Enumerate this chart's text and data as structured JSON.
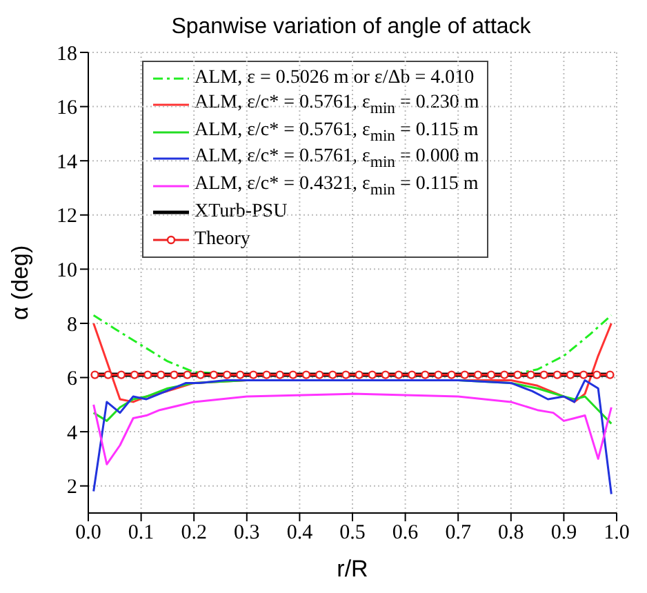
{
  "chart_data": {
    "type": "line",
    "title": "Spanwise variation of angle of attack",
    "xlabel": "r/R",
    "ylabel": "α (deg)",
    "xlim": [
      0,
      1
    ],
    "xticks": [
      {
        "value": 0,
        "label": "0.0"
      },
      0.1,
      0.2,
      0.3,
      0.4,
      0.5,
      0.6,
      0.7,
      0.8,
      0.9,
      {
        "value": 1,
        "label": "1.0"
      }
    ],
    "ylim": [
      1,
      18
    ],
    "yticks": [
      2,
      4,
      6,
      8,
      10,
      12,
      14,
      16,
      18
    ],
    "grid": true,
    "legend": "top",
    "series": [
      {
        "name": "ALM, ε = 0.5026 m or ε/Δb = 4.010",
        "color": "#22ee22",
        "line_style": "dashed",
        "x": [
          0.01,
          0.05,
          0.1,
          0.15,
          0.2,
          0.3,
          0.5,
          0.7,
          0.8,
          0.85,
          0.9,
          0.95,
          0.99
        ],
        "values": [
          8.3,
          7.8,
          7.2,
          6.6,
          6.2,
          6.1,
          6.1,
          6.1,
          6.1,
          6.3,
          6.8,
          7.6,
          8.3
        ]
      },
      {
        "name": "ALM, ε/c* = 0.5761, ε$_{min}$ = 0.230 m",
        "color": "#ff3333",
        "x": [
          0.01,
          0.035,
          0.06,
          0.085,
          0.11,
          0.15,
          0.2,
          0.3,
          0.5,
          0.7,
          0.8,
          0.85,
          0.9,
          0.92,
          0.94,
          0.965,
          0.99
        ],
        "values": [
          8.0,
          6.6,
          5.2,
          5.1,
          5.3,
          5.5,
          5.8,
          5.9,
          5.9,
          5.9,
          5.9,
          5.7,
          5.3,
          5.1,
          5.4,
          6.8,
          8.0
        ]
      },
      {
        "name": "ALM, ε/c* = 0.5761, ε$_{min}$ = 0.115 m",
        "color": "#22dd22",
        "x": [
          0.01,
          0.035,
          0.06,
          0.085,
          0.11,
          0.15,
          0.2,
          0.3,
          0.5,
          0.7,
          0.8,
          0.85,
          0.9,
          0.92,
          0.94,
          0.965,
          0.99
        ],
        "values": [
          4.7,
          4.4,
          4.9,
          5.2,
          5.3,
          5.6,
          5.8,
          5.9,
          5.9,
          5.9,
          5.8,
          5.6,
          5.3,
          5.2,
          5.3,
          4.8,
          4.3
        ]
      },
      {
        "name": "ALM, ε/c* = 0.5761, ε$_{min}$ = 0.000 m",
        "color": "#2233dd",
        "x": [
          0.01,
          0.035,
          0.06,
          0.085,
          0.11,
          0.135,
          0.16,
          0.185,
          0.21,
          0.26,
          0.3,
          0.5,
          0.7,
          0.8,
          0.84,
          0.87,
          0.9,
          0.92,
          0.94,
          0.965,
          0.99
        ],
        "values": [
          1.8,
          5.1,
          4.7,
          5.3,
          5.2,
          5.4,
          5.6,
          5.8,
          5.8,
          5.9,
          5.9,
          5.9,
          5.9,
          5.8,
          5.5,
          5.2,
          5.3,
          5.1,
          5.9,
          5.6,
          1.7
        ]
      },
      {
        "name": "ALM, ε/c* = 0.4321, ε$_{min}$ = 0.115 m",
        "color": "#ff33ff",
        "x": [
          0.01,
          0.035,
          0.06,
          0.085,
          0.11,
          0.135,
          0.2,
          0.3,
          0.5,
          0.7,
          0.8,
          0.85,
          0.88,
          0.9,
          0.92,
          0.94,
          0.965,
          0.99
        ],
        "values": [
          5.0,
          2.8,
          3.5,
          4.5,
          4.6,
          4.8,
          5.1,
          5.3,
          5.4,
          5.3,
          5.1,
          4.8,
          4.7,
          4.4,
          4.5,
          4.6,
          3.0,
          4.9
        ]
      },
      {
        "name": "XTurb-PSU",
        "color": "#000000",
        "x": [
          0.01,
          0.99
        ],
        "values": [
          6.1,
          6.1
        ]
      },
      {
        "name": "Theory",
        "color": "#ee2222",
        "marker": "circle",
        "x": [
          0.0125,
          0.0375,
          0.0625,
          0.0875,
          0.1125,
          0.1375,
          0.1625,
          0.1875,
          0.2125,
          0.2375,
          0.2625,
          0.2875,
          0.3125,
          0.3375,
          0.3625,
          0.3875,
          0.4125,
          0.4375,
          0.4625,
          0.4875,
          0.5125,
          0.5375,
          0.5625,
          0.5875,
          0.6125,
          0.6375,
          0.6625,
          0.6875,
          0.7125,
          0.7375,
          0.7625,
          0.7875,
          0.8125,
          0.8375,
          0.8625,
          0.8875,
          0.9125,
          0.9375,
          0.9625,
          0.9875
        ],
        "values": [
          6.1,
          6.1,
          6.1,
          6.1,
          6.1,
          6.1,
          6.1,
          6.1,
          6.1,
          6.1,
          6.1,
          6.1,
          6.1,
          6.1,
          6.1,
          6.1,
          6.1,
          6.1,
          6.1,
          6.1,
          6.1,
          6.1,
          6.1,
          6.1,
          6.1,
          6.1,
          6.1,
          6.1,
          6.1,
          6.1,
          6.1,
          6.1,
          6.1,
          6.1,
          6.1,
          6.1,
          6.1,
          6.1,
          6.1,
          6.1
        ]
      }
    ]
  }
}
